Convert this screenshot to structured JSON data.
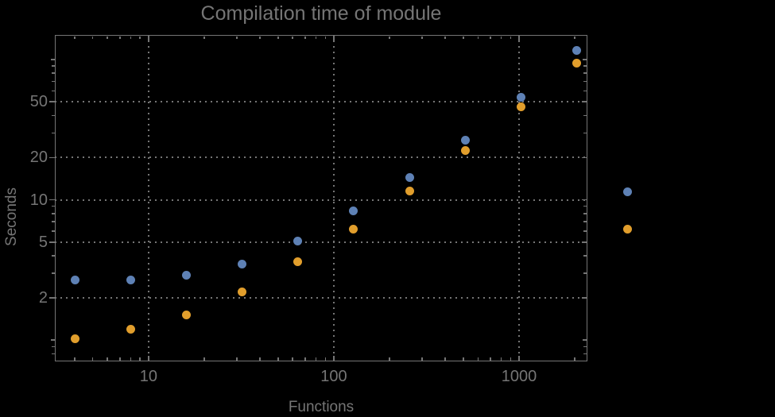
{
  "title": "Compilation time of module",
  "colors": {
    "background": "#000000",
    "frame": "#757575",
    "grid": "#757575",
    "text": "#757575",
    "series1_blue": "#5e81b5",
    "series2_orange": "#e19e2c"
  },
  "chart_data": {
    "type": "scatter",
    "title": "Compilation time of module",
    "xlabel": "Functions",
    "ylabel": "Seconds",
    "xscale": "log",
    "yscale": "log",
    "xlim": [
      3.12,
      2340
    ],
    "ylim": [
      0.705,
      150
    ],
    "grid": "dotted gridlines at labeled major ticks only",
    "legend_position": "right-outside, markers only (no visible labels)",
    "x": [
      4,
      8,
      16,
      32,
      64,
      128,
      256,
      512,
      1024,
      2048
    ],
    "series": [
      {
        "name": "",
        "marker_color": "#5e81b5",
        "values": [
          2.7,
          2.7,
          2.9,
          3.5,
          5.1,
          8.3,
          14.4,
          26.5,
          54,
          116
        ]
      },
      {
        "name": "",
        "marker_color": "#e19e2c",
        "values": [
          1.02,
          1.2,
          1.52,
          2.2,
          3.6,
          6.2,
          11.6,
          22.6,
          46,
          95
        ]
      }
    ],
    "x_ticks": [
      {
        "v": 10,
        "label": "10"
      },
      {
        "v": 100,
        "label": "100"
      },
      {
        "v": 1000,
        "label": "1000"
      }
    ],
    "y_ticks": [
      {
        "v": 2,
        "label": "2"
      },
      {
        "v": 5,
        "label": "5"
      },
      {
        "v": 10,
        "label": "10"
      },
      {
        "v": 20,
        "label": "20"
      },
      {
        "v": 50,
        "label": "50"
      }
    ],
    "x_minor_ticks": [
      4,
      5,
      6,
      7,
      8,
      9,
      20,
      30,
      40,
      50,
      60,
      70,
      80,
      90,
      200,
      300,
      400,
      500,
      600,
      700,
      800,
      900,
      2000
    ],
    "y_minor_ticks": [
      0.8,
      0.9,
      3,
      4,
      6,
      7,
      8,
      9,
      30,
      40,
      60,
      70,
      80,
      90
    ],
    "y_decade_ticks": [
      1,
      100
    ],
    "legend": [
      {
        "label": "",
        "marker_color": "#5e81b5"
      },
      {
        "label": "",
        "marker_color": "#e19e2c"
      }
    ]
  }
}
